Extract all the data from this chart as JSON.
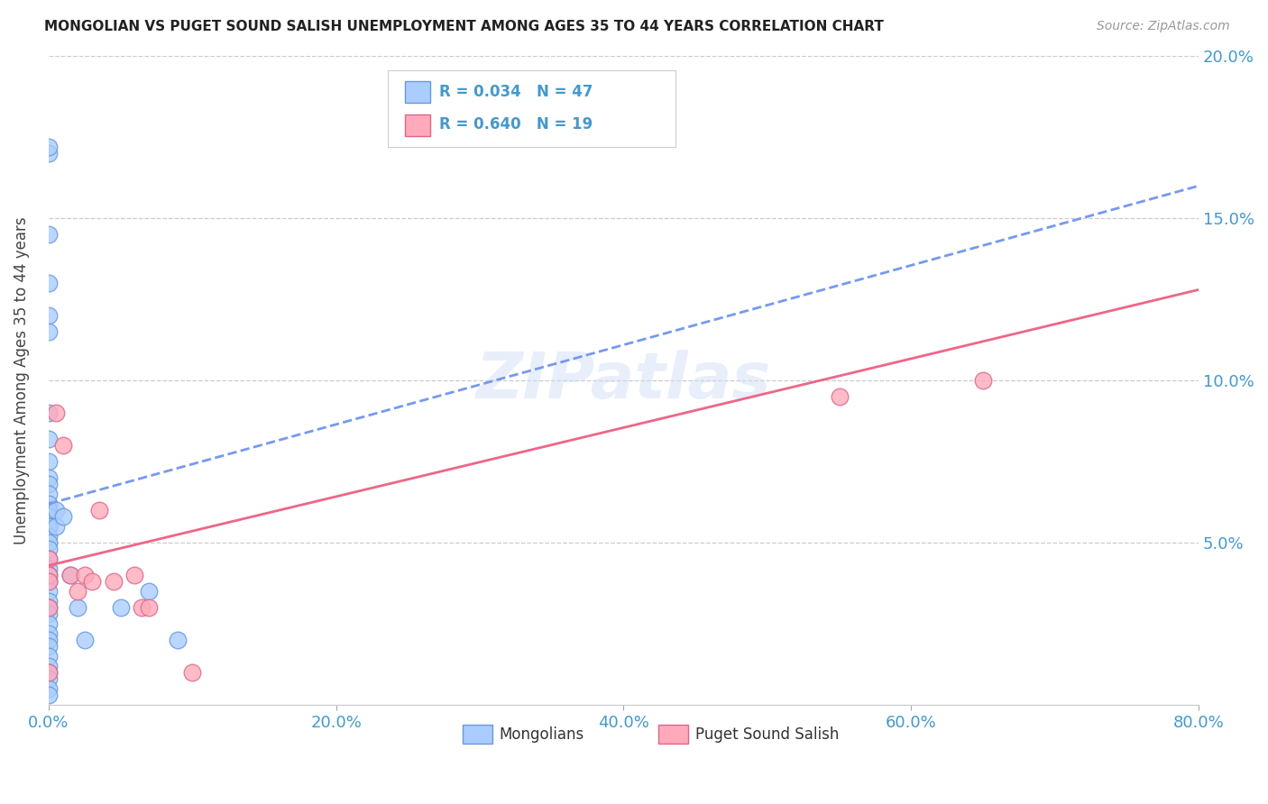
{
  "title": "MONGOLIAN VS PUGET SOUND SALISH UNEMPLOYMENT AMONG AGES 35 TO 44 YEARS CORRELATION CHART",
  "source": "Source: ZipAtlas.com",
  "ylabel": "Unemployment Among Ages 35 to 44 years",
  "xlim": [
    0,
    0.8
  ],
  "ylim": [
    0,
    0.2
  ],
  "xticks": [
    0.0,
    0.2,
    0.4,
    0.6,
    0.8
  ],
  "yticks": [
    0.0,
    0.05,
    0.1,
    0.15,
    0.2
  ],
  "xtick_labels": [
    "0.0%",
    "20.0%",
    "40.0%",
    "60.0%",
    "80.0%"
  ],
  "right_ytick_labels": [
    "",
    "5.0%",
    "10.0%",
    "15.0%",
    "20.0%"
  ],
  "mongolian_fill": "#aaccff",
  "mongolian_edge": "#6699dd",
  "salish_fill": "#ffaabb",
  "salish_edge": "#dd6688",
  "trendline_blue": "#7799ee",
  "trendline_pink": "#ee6688",
  "mongolian_R": 0.034,
  "mongolian_N": 47,
  "salish_R": 0.64,
  "salish_N": 19,
  "legend_label_1": "Mongolians",
  "legend_label_2": "Puget Sound Salish",
  "watermark": "ZIPatlas",
  "bg": "#ffffff",
  "tick_color": "#4499cc",
  "title_color": "#222222",
  "source_color": "#999999",
  "ylabel_color": "#444444",
  "grid_color": "#cccccc",
  "mongolians_x": [
    0.0,
    0.0,
    0.0,
    0.0,
    0.0,
    0.0,
    0.0,
    0.0,
    0.0,
    0.0,
    0.0,
    0.0,
    0.0,
    0.0,
    0.0,
    0.0,
    0.0,
    0.0,
    0.0,
    0.0,
    0.0,
    0.0,
    0.0,
    0.0,
    0.0,
    0.0,
    0.0,
    0.0,
    0.0,
    0.0,
    0.0,
    0.0,
    0.0,
    0.0,
    0.0,
    0.0,
    0.0,
    0.0,
    0.005,
    0.005,
    0.01,
    0.015,
    0.02,
    0.025,
    0.05,
    0.07,
    0.09
  ],
  "mongolians_y": [
    0.17,
    0.172,
    0.145,
    0.13,
    0.12,
    0.115,
    0.09,
    0.082,
    0.075,
    0.07,
    0.068,
    0.065,
    0.062,
    0.06,
    0.058,
    0.055,
    0.055,
    0.052,
    0.05,
    0.048,
    0.045,
    0.042,
    0.04,
    0.038,
    0.035,
    0.032,
    0.03,
    0.028,
    0.025,
    0.022,
    0.02,
    0.018,
    0.015,
    0.012,
    0.01,
    0.008,
    0.005,
    0.003,
    0.06,
    0.055,
    0.058,
    0.04,
    0.03,
    0.02,
    0.03,
    0.035,
    0.02
  ],
  "salish_x": [
    0.0,
    0.0,
    0.0,
    0.0,
    0.0,
    0.005,
    0.01,
    0.015,
    0.02,
    0.025,
    0.03,
    0.035,
    0.045,
    0.06,
    0.065,
    0.07,
    0.1,
    0.55,
    0.65
  ],
  "salish_y": [
    0.045,
    0.04,
    0.038,
    0.03,
    0.01,
    0.09,
    0.08,
    0.04,
    0.035,
    0.04,
    0.038,
    0.06,
    0.038,
    0.04,
    0.03,
    0.03,
    0.01,
    0.095,
    0.1
  ],
  "mongo_trendline_x": [
    0.0,
    0.8
  ],
  "mongo_trendline_y": [
    0.062,
    0.16
  ],
  "salish_trendline_x": [
    0.0,
    0.8
  ],
  "salish_trendline_y": [
    0.043,
    0.128
  ]
}
